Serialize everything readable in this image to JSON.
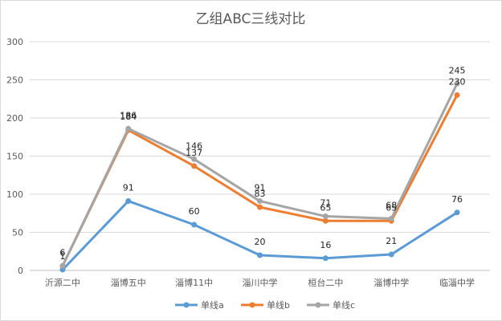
{
  "chart_data": {
    "type": "line",
    "title": "乙组ABC三线对比",
    "categories": [
      "沂源二中",
      "淄博五中",
      "淄博11中",
      "淄川中学",
      "桓台二中",
      "淄博中学",
      "临淄中学"
    ],
    "series": [
      {
        "name": "单线a",
        "values": [
          1,
          91,
          60,
          20,
          16,
          21,
          76
        ]
      },
      {
        "name": "单线b",
        "values": [
          6,
          184,
          137,
          83,
          65,
          65,
          230
        ]
      },
      {
        "name": "单线c",
        "values": [
          6,
          186,
          146,
          91,
          71,
          68,
          245
        ]
      }
    ],
    "ylim": [
      0,
      300
    ],
    "yticks": [
      0,
      50,
      100,
      150,
      200,
      250,
      300
    ],
    "grid": true,
    "legend": "bottom",
    "colors": [
      "#5b9bd5",
      "#ed7d31",
      "#a5a5a5"
    ]
  }
}
